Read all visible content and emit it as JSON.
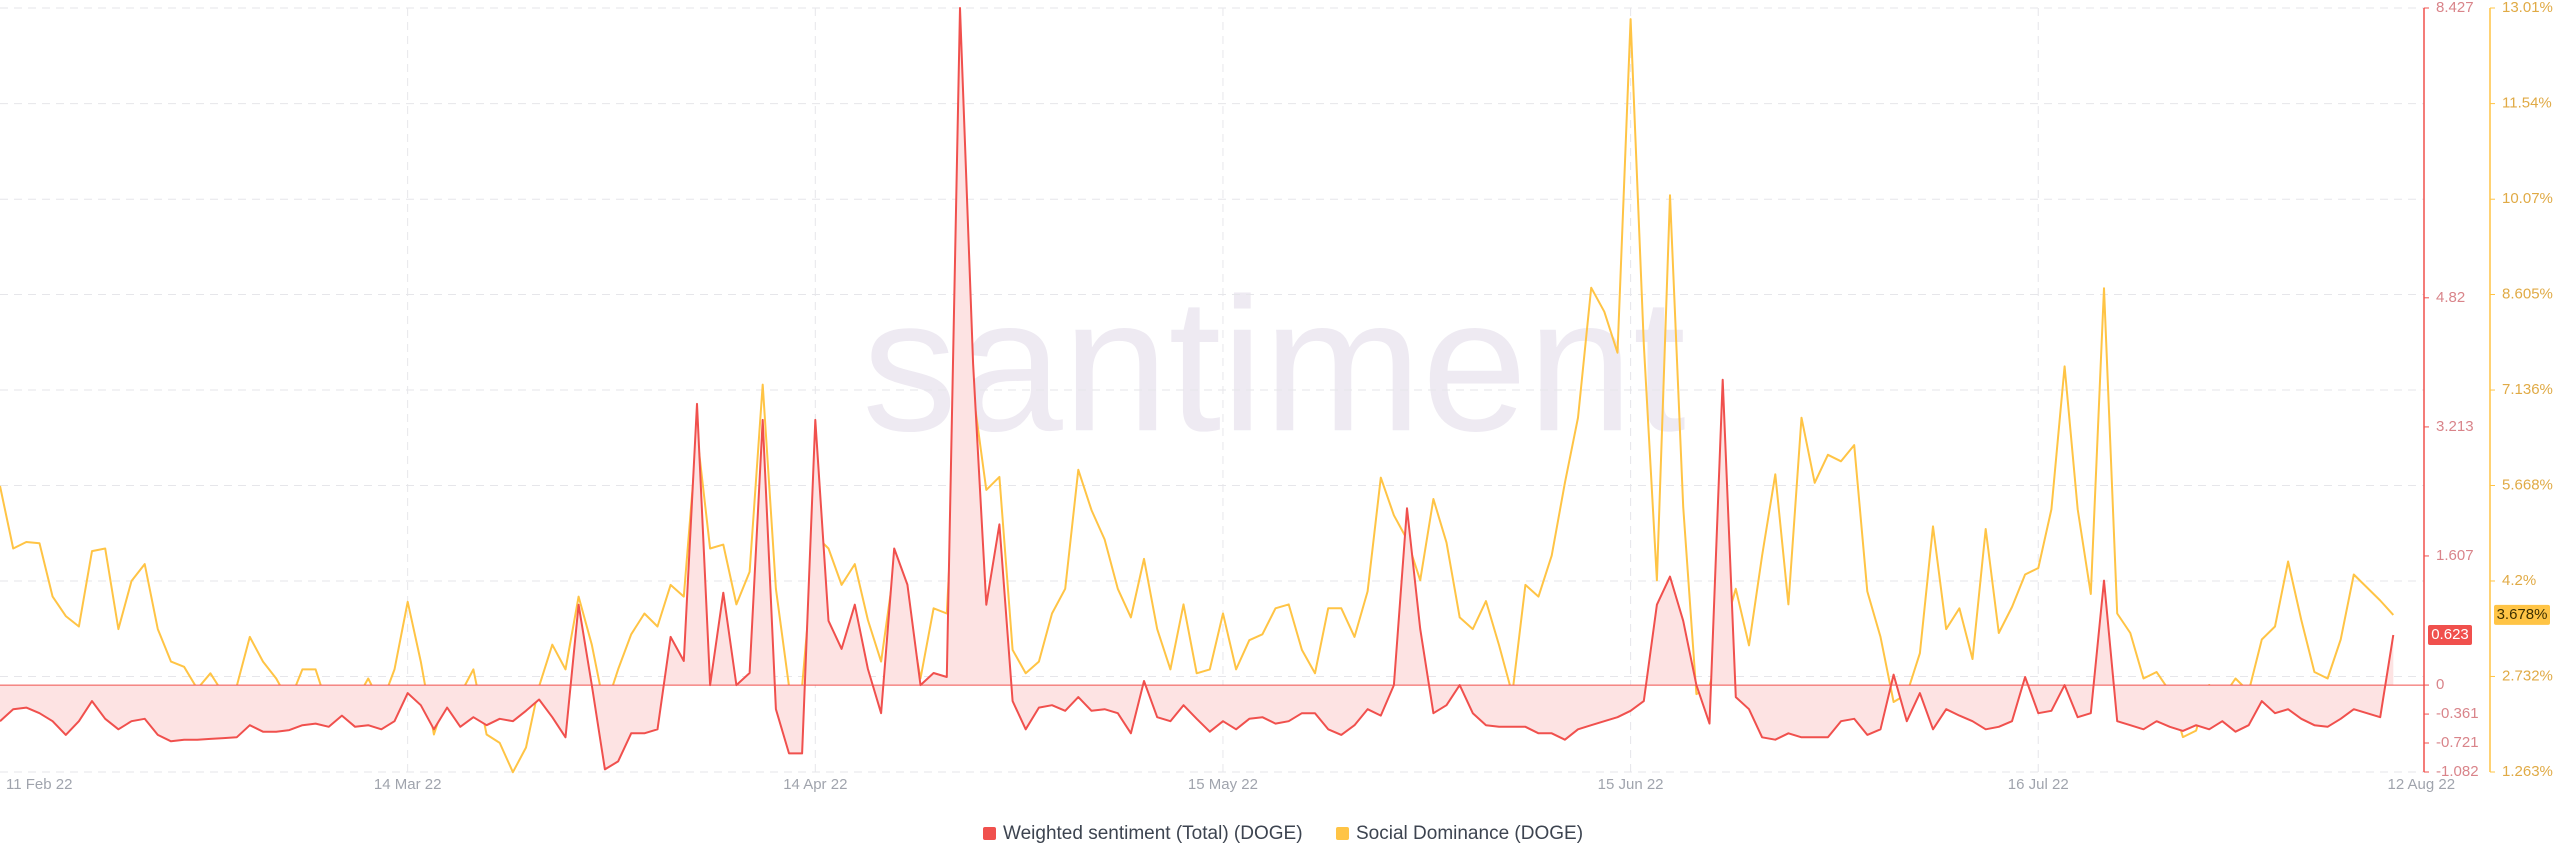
{
  "chart_data": {
    "type": "line",
    "watermark": "santiment",
    "legend": "bottom",
    "grid": true,
    "categories": [
      "11 Feb 22",
      null,
      null,
      null,
      null,
      null,
      null,
      null,
      null,
      null,
      null,
      null,
      null,
      null,
      null,
      null,
      null,
      null,
      null,
      null,
      null,
      null,
      null,
      null,
      null,
      null,
      null,
      null,
      null,
      null,
      null,
      "14 Mar 22",
      null,
      null,
      null,
      null,
      null,
      null,
      null,
      null,
      null,
      null,
      null,
      null,
      null,
      null,
      null,
      null,
      null,
      null,
      null,
      null,
      null,
      null,
      null,
      null,
      null,
      null,
      null,
      null,
      null,
      null,
      "14 Apr 22",
      null,
      null,
      null,
      null,
      null,
      null,
      null,
      null,
      null,
      null,
      null,
      null,
      null,
      null,
      null,
      null,
      null,
      null,
      null,
      null,
      null,
      null,
      null,
      null,
      null,
      null,
      null,
      null,
      null,
      null,
      "15 May 22",
      null,
      null,
      null,
      null,
      null,
      null,
      null,
      null,
      null,
      null,
      null,
      null,
      null,
      null,
      null,
      null,
      null,
      null,
      null,
      null,
      null,
      null,
      null,
      null,
      null,
      null,
      null,
      null,
      null,
      null,
      "15 Jun 22",
      null,
      null,
      null,
      null,
      null,
      null,
      null,
      null,
      null,
      null,
      null,
      null,
      null,
      null,
      null,
      null,
      null,
      null,
      null,
      null,
      null,
      null,
      null,
      null,
      null,
      null,
      null,
      null,
      null,
      null,
      "16 Jul 22",
      null,
      null,
      null,
      null,
      null,
      null,
      null,
      null,
      null,
      null,
      null,
      null,
      null,
      null,
      null,
      null,
      null,
      null,
      null,
      null,
      null,
      null,
      null,
      null,
      null,
      null,
      "12 Aug 22"
    ],
    "ylim": [
      -1.082,
      8.427
    ],
    "yticks": [
      -1.082,
      -0.721,
      -0.361,
      0,
      1.607,
      3.213,
      4.82,
      8.427
    ],
    "y2lim": [
      1.263,
      13.01
    ],
    "y2ticks": [
      {
        "value": 1.263,
        "label": "1.263%"
      },
      {
        "value": 2.732,
        "label": "2.732%"
      },
      {
        "value": 4.2,
        "label": "4.2%"
      },
      {
        "value": 5.668,
        "label": "5.668%"
      },
      {
        "value": 7.136,
        "label": "7.136%"
      },
      {
        "value": 8.605,
        "label": "8.605%"
      },
      {
        "value": 10.07,
        "label": "10.07%"
      },
      {
        "value": 11.54,
        "label": "11.54%"
      },
      {
        "value": 13.01,
        "label": "13.01%"
      }
    ],
    "series": [
      {
        "name": "Weighted sentiment (Total) (DOGE)",
        "color": "#f0504d",
        "axis": "y",
        "values": [
          -0.45,
          -0.3,
          -0.28,
          -0.35,
          -0.45,
          -0.62,
          -0.45,
          -0.2,
          -0.42,
          -0.55,
          -0.45,
          -0.42,
          -0.62,
          -0.7,
          -0.68,
          -0.68,
          -0.67,
          -0.66,
          -0.65,
          -0.5,
          -0.58,
          -0.58,
          -0.56,
          -0.5,
          -0.48,
          -0.52,
          -0.38,
          -0.52,
          -0.5,
          -0.55,
          -0.45,
          -0.1,
          -0.25,
          -0.55,
          -0.28,
          -0.52,
          -0.4,
          -0.5,
          -0.42,
          -0.45,
          -0.32,
          -0.18,
          -0.4,
          -0.65,
          1.0,
          0.0,
          -1.05,
          -0.95,
          -0.6,
          -0.6,
          -0.55,
          0.6,
          0.3,
          3.5,
          0.0,
          1.15,
          0.0,
          0.15,
          3.3,
          -0.3,
          -0.85,
          -0.85,
          3.3,
          0.8,
          0.45,
          1.0,
          0.2,
          -0.35,
          1.7,
          1.25,
          0.0,
          0.15,
          0.1,
          8.427,
          4.0,
          1.0,
          2.0,
          -0.2,
          -0.55,
          -0.28,
          -0.25,
          -0.32,
          -0.15,
          -0.32,
          -0.3,
          -0.35,
          -0.6,
          0.05,
          -0.4,
          -0.45,
          -0.25,
          -0.42,
          -0.58,
          -0.45,
          -0.55,
          -0.42,
          -0.4,
          -0.48,
          -0.45,
          -0.35,
          -0.35,
          -0.55,
          -0.62,
          -0.5,
          -0.3,
          -0.38,
          0.0,
          2.2,
          0.7,
          -0.35,
          -0.25,
          0.0,
          -0.35,
          -0.5,
          -0.52,
          -0.52,
          -0.52,
          -0.6,
          -0.6,
          -0.68,
          -0.55,
          -0.5,
          -0.45,
          -0.4,
          -0.32,
          -0.2,
          1.0,
          1.35,
          0.8,
          0.0,
          -0.48,
          3.8,
          -0.15,
          -0.3,
          -0.65,
          -0.68,
          -0.6,
          -0.65,
          -0.65,
          -0.65,
          -0.45,
          -0.42,
          -0.62,
          -0.55,
          0.13,
          -0.45,
          -0.1,
          -0.55,
          -0.3,
          -0.38,
          -0.45,
          -0.55,
          -0.52,
          -0.45,
          0.1,
          -0.35,
          -0.32,
          0.0,
          -0.4,
          -0.35,
          1.3,
          -0.45,
          -0.5,
          -0.55,
          -0.45,
          -0.52,
          -0.57,
          -0.5,
          -0.55,
          -0.45,
          -0.58,
          -0.5,
          -0.2,
          -0.35,
          -0.3,
          -0.42,
          -0.5,
          -0.52,
          -0.42,
          -0.3,
          -0.35,
          -0.4,
          0.623
        ]
      },
      {
        "name": "Social Dominance (DOGE)",
        "color": "#ffc445",
        "axis": "y2",
        "last_label": "3.678%",
        "values": [
          5.66,
          4.7,
          4.8,
          4.78,
          3.96,
          3.66,
          3.5,
          4.66,
          4.7,
          3.46,
          4.2,
          4.46,
          3.46,
          2.96,
          2.88,
          2.54,
          2.78,
          2.46,
          2.58,
          3.34,
          2.96,
          2.7,
          2.34,
          2.84,
          2.84,
          2.22,
          2.46,
          2.34,
          2.7,
          2.3,
          2.84,
          3.88,
          2.96,
          1.84,
          2.46,
          2.46,
          2.84,
          1.84,
          1.71,
          1.26,
          1.64,
          2.58,
          3.22,
          2.84,
          3.96,
          3.22,
          2.22,
          2.84,
          3.38,
          3.7,
          3.5,
          4.14,
          3.96,
          6.46,
          4.7,
          4.76,
          3.84,
          4.34,
          7.22,
          4.08,
          2.58,
          2.58,
          4.9,
          4.7,
          4.14,
          4.46,
          3.6,
          2.96,
          4.4,
          3.84,
          2.7,
          3.78,
          3.7,
          7.6,
          7.1,
          5.6,
          5.8,
          3.14,
          2.78,
          2.96,
          3.7,
          4.08,
          5.91,
          5.29,
          4.84,
          4.08,
          3.64,
          4.54,
          3.46,
          2.84,
          3.84,
          2.78,
          2.84,
          3.7,
          2.84,
          3.29,
          3.38,
          3.78,
          3.84,
          3.14,
          2.78,
          3.78,
          3.78,
          3.34,
          4.04,
          5.79,
          5.21,
          4.84,
          4.21,
          5.46,
          4.79,
          3.64,
          3.46,
          3.89,
          3.21,
          2.46,
          4.14,
          3.96,
          4.59,
          5.71,
          6.71,
          8.71,
          8.34,
          7.71,
          12.84,
          7.84,
          4.21,
          10.13,
          5.34,
          2.46,
          2.58,
          3.38,
          4.08,
          3.21,
          4.59,
          5.84,
          3.84,
          6.71,
          5.71,
          6.14,
          6.04,
          6.29,
          4.04,
          3.34,
          2.34,
          2.46,
          3.09,
          5.04,
          3.46,
          3.78,
          3.0,
          5.0,
          3.4,
          3.8,
          4.3,
          4.4,
          5.3,
          7.5,
          5.3,
          4.0,
          8.7,
          3.7,
          3.4,
          2.7,
          2.8,
          2.5,
          1.8,
          1.9,
          2.6,
          2.4,
          2.7,
          2.5,
          3.3,
          3.5,
          4.5,
          3.6,
          2.8,
          2.7,
          3.3,
          4.3,
          4.1,
          3.9,
          3.678
        ]
      }
    ]
  }
}
